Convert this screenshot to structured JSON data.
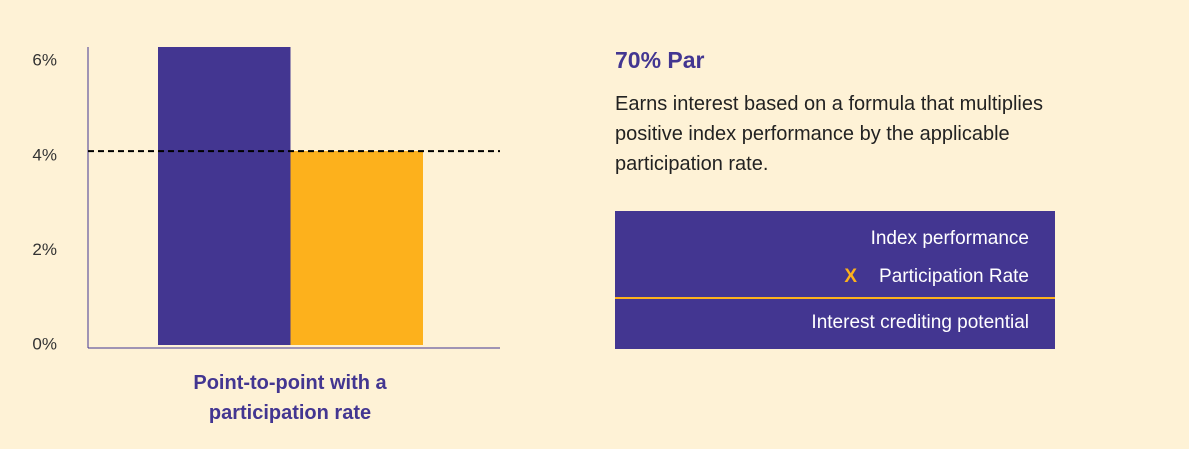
{
  "chart_data": {
    "type": "bar",
    "categories": [
      null,
      null
    ],
    "values": [
      6.3,
      4.1
    ],
    "colors": [
      "#433691",
      "#fdb11c"
    ],
    "ylim": [
      0,
      6.3
    ],
    "yticks": [
      {
        "value": 0,
        "label": "0%"
      },
      {
        "value": 2,
        "label": "2%"
      },
      {
        "value": 4,
        "label": "4%"
      },
      {
        "value": 6,
        "label": "6%"
      }
    ],
    "reference_line": 4.1,
    "x_label": "Point-to-point with a participation rate"
  },
  "panel": {
    "title": "70% Par",
    "description": "Earns interest based on a formula that multiplies positive index performance by the applicable participation rate.",
    "formula": {
      "first": "Index performance",
      "operator": "X",
      "second": "Participation Rate",
      "result": "Interest crediting potential"
    }
  }
}
